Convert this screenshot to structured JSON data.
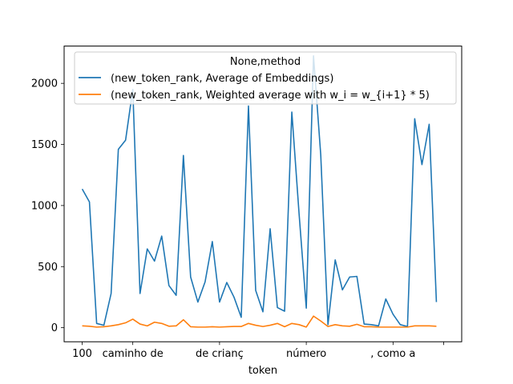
{
  "chart_data": {
    "type": "line",
    "title": "",
    "xlabel": "token",
    "ylabel": "",
    "ylim": [
      -115,
      2305
    ],
    "xlim": [
      -2.5,
      52.5
    ],
    "x_tick_positions": [
      0,
      7,
      19,
      31,
      43,
      50
    ],
    "x_tick_labels": [
      "100",
      "caminho de",
      "de crianç",
      "número",
      ", como a",
      ""
    ],
    "y_ticks": [
      0,
      500,
      1000,
      1500,
      2000
    ],
    "y_tick_labels": [
      "0",
      "500",
      "1000",
      "1500",
      "2000"
    ],
    "legend": {
      "title": "None,method",
      "position": "top-right",
      "entries": [
        "(new_token_rank, Average of Embeddings)",
        "(new_token_rank, Weighted average with w_i = w_{i+1} * 5)"
      ]
    },
    "series": [
      {
        "name": "(new_token_rank, Average of Embeddings)",
        "color": "#1f77b4",
        "values": [
          1135,
          1030,
          35,
          20,
          280,
          1460,
          1535,
          1950,
          280,
          645,
          545,
          750,
          345,
          265,
          1410,
          415,
          210,
          375,
          705,
          210,
          370,
          250,
          85,
          1815,
          305,
          130,
          810,
          165,
          135,
          1765,
          935,
          160,
          2225,
          1415,
          25,
          555,
          310,
          415,
          420,
          30,
          25,
          15,
          235,
          110,
          25,
          10,
          1710,
          1335,
          1665,
          210
        ]
      },
      {
        "name": "(new_token_rank, Weighted average with w_i = w_{i+1} * 5)",
        "color": "#ff7f0e",
        "values": [
          15,
          12,
          5,
          8,
          15,
          25,
          40,
          70,
          30,
          15,
          45,
          35,
          12,
          15,
          65,
          8,
          5,
          5,
          8,
          5,
          8,
          10,
          10,
          35,
          20,
          10,
          20,
          35,
          8,
          35,
          25,
          5,
          95,
          55,
          10,
          25,
          15,
          12,
          28,
          8,
          8,
          5,
          5,
          5,
          5,
          5,
          15,
          15,
          15,
          12
        ]
      }
    ]
  }
}
